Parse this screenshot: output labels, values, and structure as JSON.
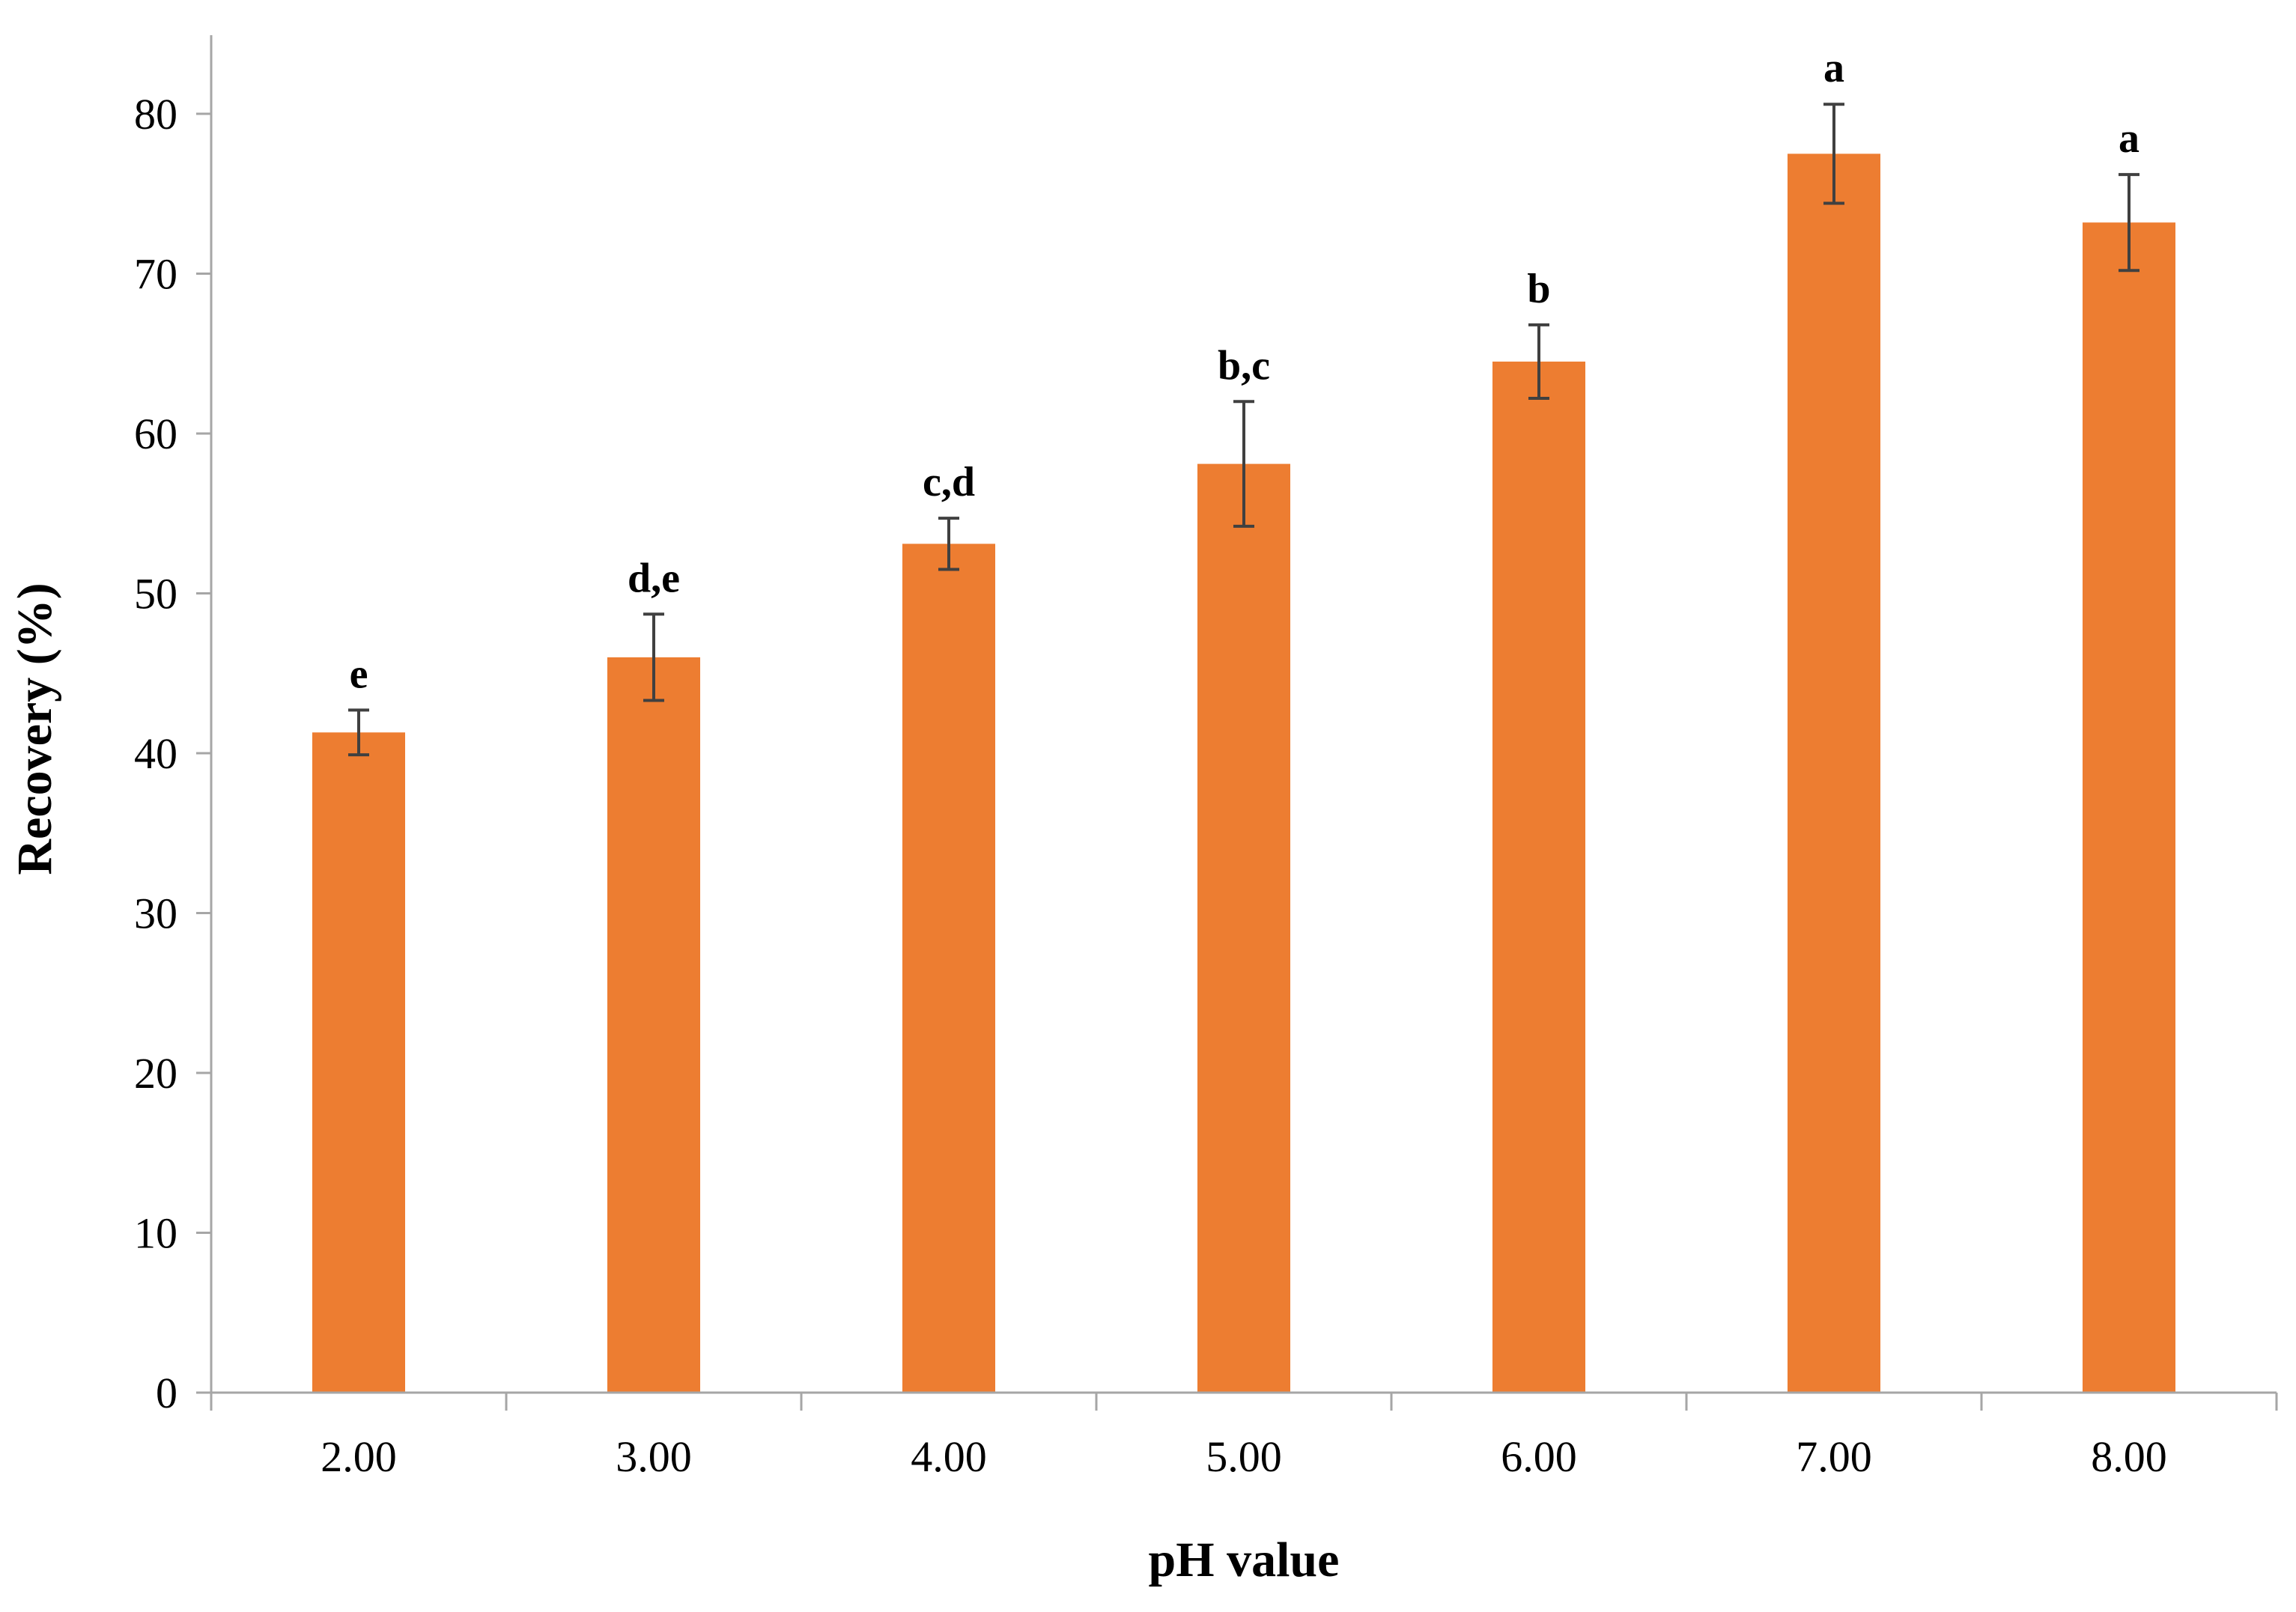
{
  "chart_data": {
    "type": "bar",
    "categories": [
      "2.00",
      "3.00",
      "4.00",
      "5.00",
      "6.00",
      "7.00",
      "8.00"
    ],
    "values": [
      41.3,
      46.0,
      53.1,
      58.1,
      64.5,
      77.5,
      73.2
    ],
    "errors": [
      1.4,
      2.7,
      1.6,
      3.9,
      2.3,
      3.1,
      3.0
    ],
    "significance_labels": [
      "e",
      "d,e",
      "c,d",
      "b,c",
      "b",
      "a",
      "a"
    ],
    "title": "",
    "xlabel": "pH value",
    "ylabel": "Recovery (%)",
    "ylim": [
      0,
      80
    ],
    "yticks": [
      "0",
      "10",
      "20",
      "30",
      "40",
      "50",
      "60",
      "70",
      "80"
    ],
    "grid": false,
    "legend": "none",
    "colors": {
      "bar": "#ED7D31",
      "error_bar": "#404040",
      "axis": "#A6A6A6"
    }
  }
}
